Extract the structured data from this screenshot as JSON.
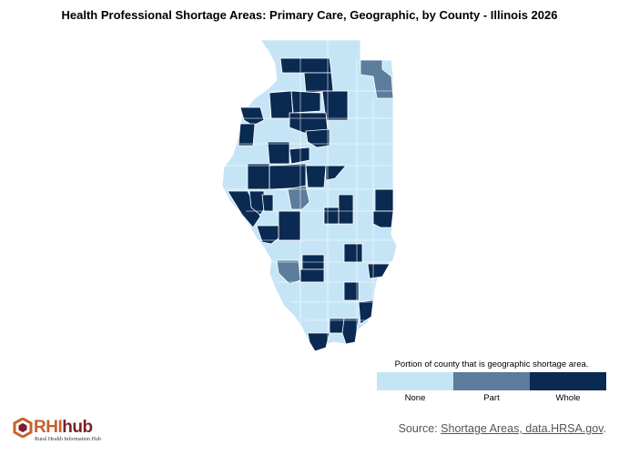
{
  "title": "Health Professional Shortage Areas: Primary Care, Geographic, by County - Illinois 2026",
  "colors": {
    "none": "#c5e5f6",
    "part": "#5d7d9c",
    "whole": "#0a2a52",
    "border": "#ffffff"
  },
  "legend": {
    "title": "Portion of county that is geographic shortage area.",
    "items": [
      {
        "label": "None",
        "category": "none"
      },
      {
        "label": "Part",
        "category": "part"
      },
      {
        "label": "Whole",
        "category": "whole"
      }
    ]
  },
  "source": {
    "prefix": "Source:",
    "link_text": "Shortage Areas, data.HRSA.gov",
    "suffix": "."
  },
  "logo": {
    "word_rhi": "RHI",
    "word_hub": "hub",
    "subtitle": "Rural Health Information Hub"
  }
}
